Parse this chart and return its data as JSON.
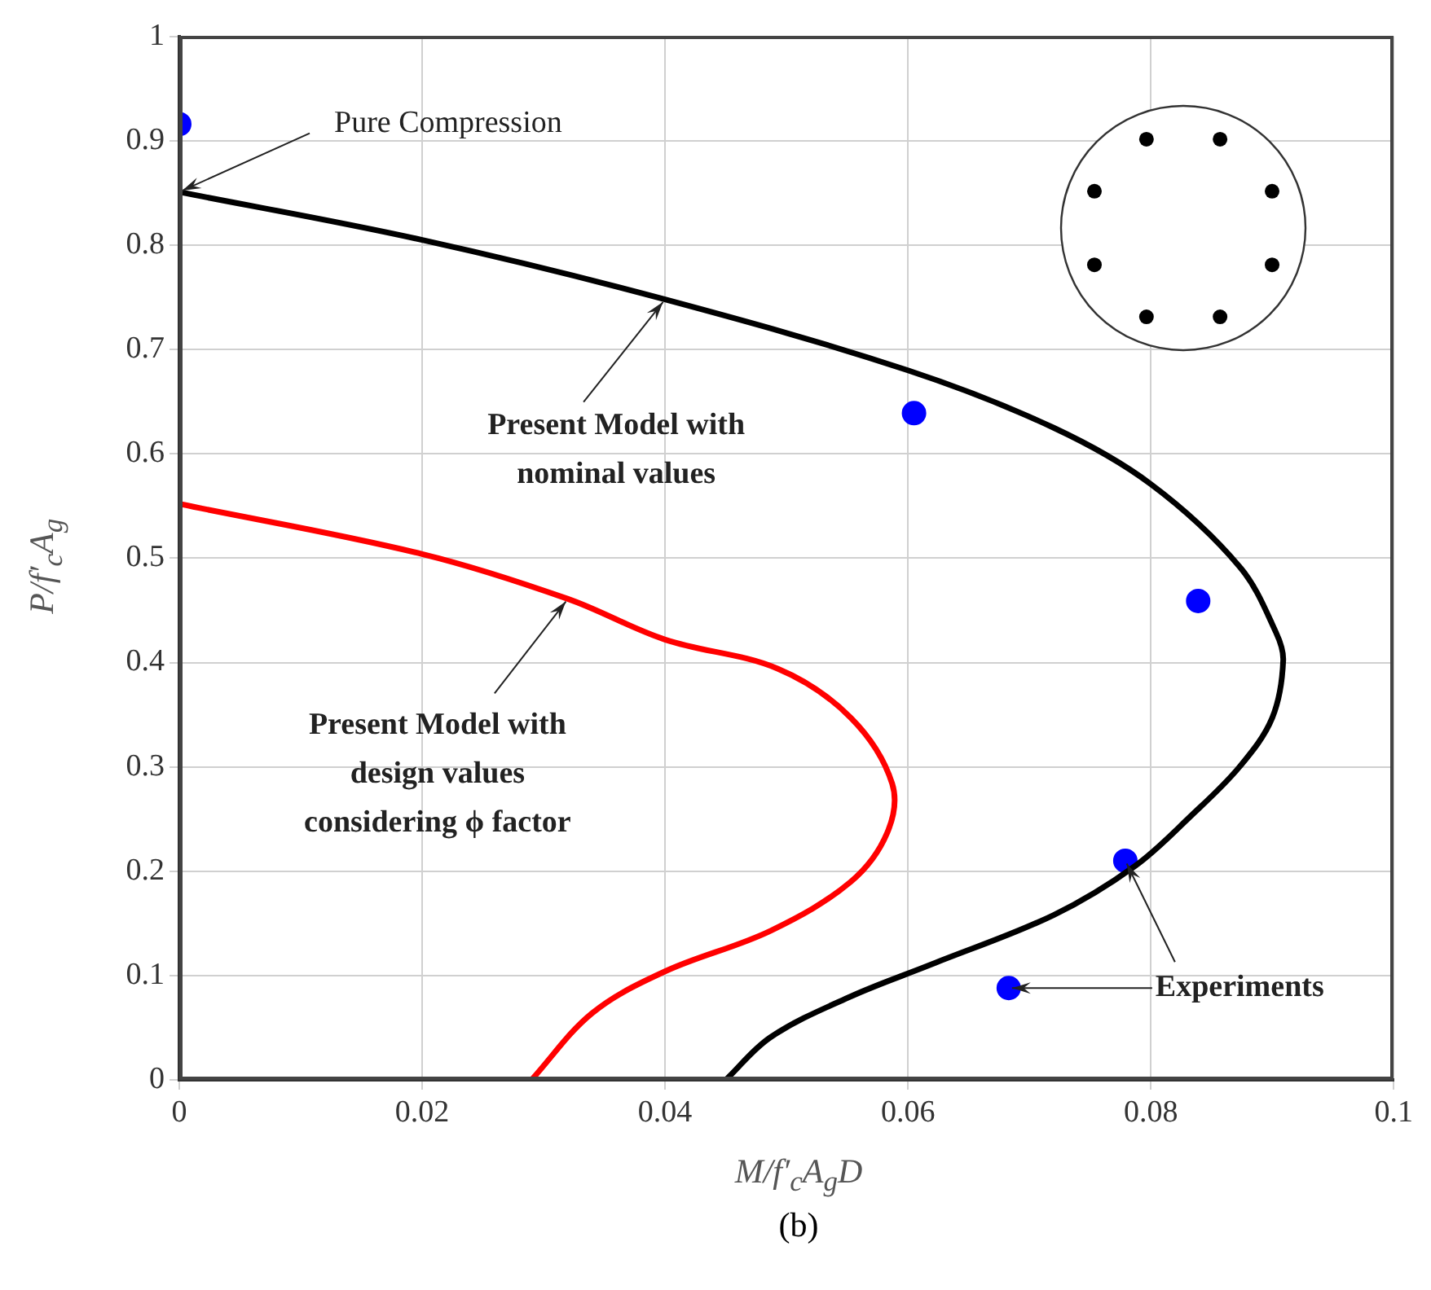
{
  "chart_data": {
    "type": "line",
    "xlabel": "M/f′$_{c}$A$_{g}$D",
    "ylabel": "P/f′$_{c}$A$_{g}$",
    "xlim": [
      0,
      0.1
    ],
    "xticks": [
      0,
      0.02,
      0.04,
      0.06,
      0.08,
      0.1
    ],
    "ylim": [
      0,
      1
    ],
    "yticks": [
      0,
      0.1,
      0.2,
      0.3,
      0.4,
      0.5,
      0.6,
      0.7,
      0.8,
      0.9,
      1
    ],
    "grid": true,
    "legend": false,
    "series": [
      {
        "color": "#000000",
        "marker": "none",
        "x": [
          0,
          0.02,
          0.04,
          0.06,
          0.072,
          0.08,
          0.0873,
          0.0903,
          0.0909,
          0.09,
          0.0873,
          0.0833,
          0.0787,
          0.072,
          0.062,
          0.0553,
          0.0487,
          0.045
        ],
        "values": [
          0.851,
          0.805,
          0.748,
          0.68,
          0.625,
          0.571,
          0.492,
          0.429,
          0.402,
          0.347,
          0.3,
          0.253,
          0.205,
          0.158,
          0.111,
          0.08,
          0.041,
          0
        ]
      },
      {
        "color": "#ff0000",
        "marker": "none",
        "x": [
          0,
          0.02,
          0.032,
          0.04,
          0.0493,
          0.0553,
          0.0587,
          0.0583,
          0.0553,
          0.0487,
          0.04,
          0.034,
          0.029
        ],
        "values": [
          0.552,
          0.504,
          0.461,
          0.422,
          0.394,
          0.347,
          0.284,
          0.237,
          0.19,
          0.143,
          0.104,
          0.064,
          0
        ]
      },
      {
        "type": "scatter",
        "color": "#0000ff",
        "marker": "circle",
        "x": [
          0,
          0.0605,
          0.0839,
          0.0779,
          0.0683
        ],
        "values": [
          0.916,
          0.639,
          0.459,
          0.21,
          0.088
        ]
      }
    ],
    "annotations": [
      {
        "text": "Pure Compression",
        "x": 0,
        "y": 0.851
      },
      {
        "text": "Present Model with\nnominal values",
        "x": 0.04,
        "y": 0.748
      },
      {
        "text": "Present Model with\ndesign values\nconsidering ϕ factor",
        "x": 0.032,
        "y": 0.461
      },
      {
        "text": "Experiments",
        "x": 0.0683,
        "y": 0.088
      },
      "(b)"
    ]
  }
}
